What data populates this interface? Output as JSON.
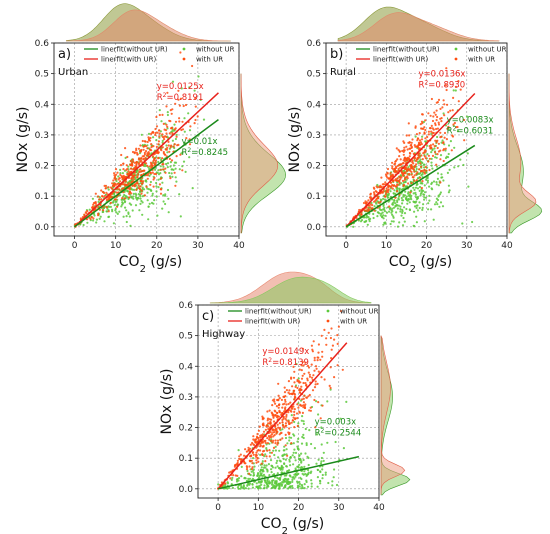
{
  "chart_data": [
    {
      "type": "scatter",
      "panel_label": "a)",
      "location": "Urban",
      "xlabel_main": "CO",
      "xlabel_sub": "2",
      "xlabel_unit": " (g/s)",
      "ylabel": "NOx (g/s)",
      "xlim": [
        -5,
        40
      ],
      "ylim": [
        -0.03,
        0.6
      ],
      "xticks": [
        "0",
        "10",
        "20",
        "30",
        "40"
      ],
      "yticks": [
        "0.0",
        "0.1",
        "0.2",
        "0.3",
        "0.4",
        "0.5",
        "0.6"
      ],
      "grid": true,
      "legend": {
        "placement": "top",
        "entries": [
          "linerfit(without UR)",
          "linerfit(with UR)",
          "without UR",
          "with UR"
        ],
        "colors": [
          "#1b8a1b",
          "#e8231d",
          "#5cc93b",
          "#ff4d10"
        ]
      },
      "series": [
        {
          "name": "with UR",
          "color": "#ff4d10",
          "slope": 0.0125,
          "r2": 0.8191,
          "fit_x_max": 35,
          "scatter_x_max": 30,
          "eq_text": "y=0.0125x",
          "r2_label": "R",
          "r2_sup": "2",
          "r2_value": "=0.8191"
        },
        {
          "name": "without UR",
          "color": "#5cc93b",
          "line_color": "#1b8a1b",
          "slope": 0.01,
          "r2": 0.8245,
          "fit_x_max": 35,
          "scatter_x_max": 32,
          "eq_text": "y=0.01x",
          "r2_label": "R",
          "r2_sup": "2",
          "r2_value": "=0.8245"
        }
      ]
    },
    {
      "type": "scatter",
      "panel_label": "b)",
      "location": "Rural",
      "xlabel_main": "CO",
      "xlabel_sub": "2",
      "xlabel_unit": " (g/s)",
      "ylabel": "NOx (g/s)",
      "xlim": [
        -5,
        40
      ],
      "ylim": [
        -0.03,
        0.6
      ],
      "xticks": [
        "0",
        "10",
        "20",
        "30",
        "40"
      ],
      "yticks": [
        "0.0",
        "0.1",
        "0.2",
        "0.3",
        "0.4",
        "0.5",
        "0.6"
      ],
      "grid": true,
      "legend": {
        "placement": "top",
        "entries": [
          "linerfit(without UR)",
          "linerfit(with UR)",
          "without UR",
          "with UR"
        ],
        "colors": [
          "#1b8a1b",
          "#e8231d",
          "#5cc93b",
          "#ff4d10"
        ]
      },
      "series": [
        {
          "name": "with UR",
          "color": "#ff4d10",
          "slope": 0.0136,
          "r2": 0.893,
          "fit_x_max": 32,
          "scatter_x_max": 30,
          "eq_text": "y=0.0136x",
          "r2_label": "R",
          "r2_sup": "2",
          "r2_value": "=0.8930"
        },
        {
          "name": "without UR",
          "color": "#5cc93b",
          "line_color": "#1b8a1b",
          "slope": 0.0083,
          "r2": 0.6031,
          "fit_x_max": 32,
          "scatter_x_max": 32,
          "eq_text": "y=0.0083x",
          "r2_label": "R",
          "r2_sup": "2",
          "r2_value": "=0.6031"
        }
      ]
    },
    {
      "type": "scatter",
      "panel_label": "c)",
      "location": "Highway",
      "xlabel_main": "CO",
      "xlabel_sub": "2",
      "xlabel_unit": " (g/s)",
      "ylabel": "NOx (g/s)",
      "xlim": [
        -5,
        40
      ],
      "ylim": [
        -0.03,
        0.6
      ],
      "xticks": [
        "0",
        "10",
        "20",
        "30",
        "40"
      ],
      "yticks": [
        "0.0",
        "0.1",
        "0.2",
        "0.3",
        "0.4",
        "0.5",
        "0.6"
      ],
      "grid": true,
      "legend": {
        "placement": "top",
        "entries": [
          "linerfit(without UR)",
          "linerfit(with UR)",
          "without UR",
          "with UR"
        ],
        "colors": [
          "#1b8a1b",
          "#e8231d",
          "#5cc93b",
          "#ff4d10"
        ]
      },
      "series": [
        {
          "name": "with UR",
          "color": "#ff4d10",
          "slope": 0.0149,
          "r2": 0.8139,
          "fit_x_max": 32,
          "scatter_x_max": 31,
          "eq_text": "y=0.0149x",
          "r2_label": "R",
          "r2_sup": "2",
          "r2_value": "=0.8139"
        },
        {
          "name": "without UR",
          "color": "#5cc93b",
          "line_color": "#1b8a1b",
          "slope": 0.003,
          "r2": 0.2544,
          "fit_x_max": 35,
          "scatter_x_max": 32,
          "eq_text": "y=0.003x",
          "r2_label": "R",
          "r2_sup": "2",
          "r2_value": "=0.2544"
        }
      ]
    }
  ]
}
